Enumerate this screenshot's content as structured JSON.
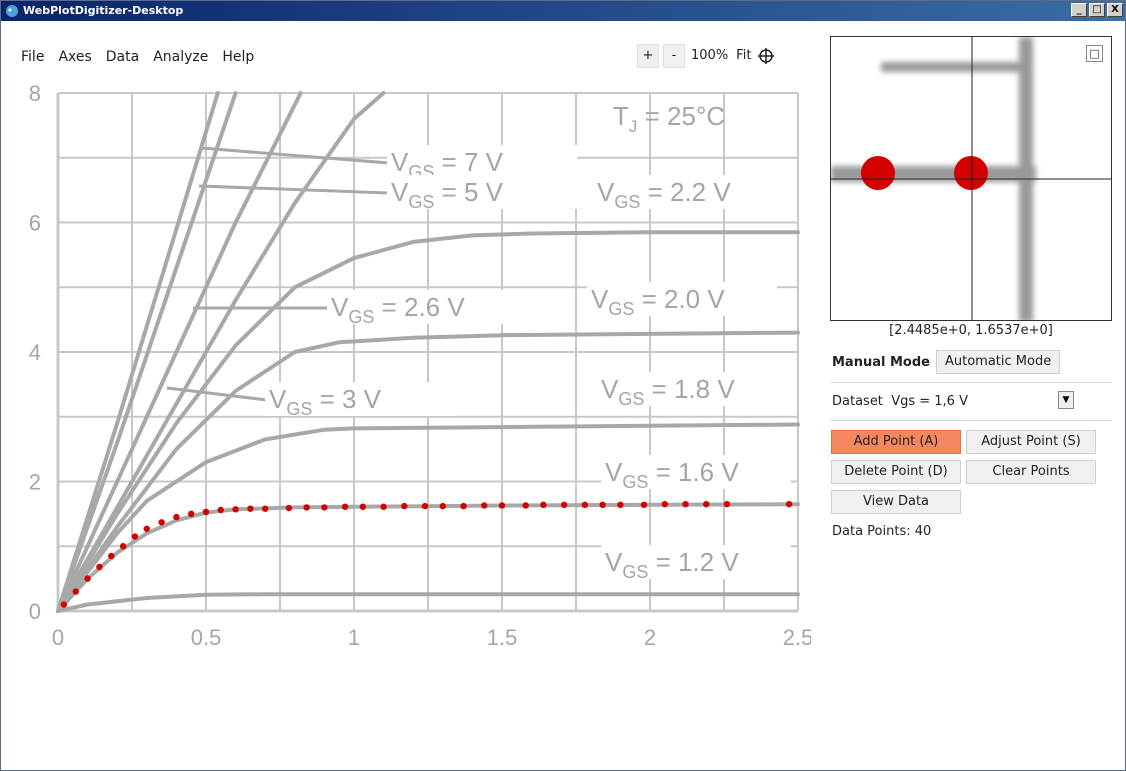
{
  "window": {
    "title": "WebPlotDigitizer-Desktop",
    "controls": [
      "_",
      "□",
      "X"
    ]
  },
  "menu": [
    "File",
    "Axes",
    "Data",
    "Analyze",
    "Help"
  ],
  "zoom_toolbar": {
    "zoom_in": "+",
    "zoom_out": "-",
    "zoom_level": "100%",
    "fit": "Fit",
    "crosshair_icon": "crosshair-icon"
  },
  "plot": {
    "junction_temp_label": "T",
    "junction_temp_sub": "J",
    "junction_temp_value": " = 25°C",
    "vgs_labels": [
      {
        "main": "V",
        "sub": "GS",
        "value": " = 7 V"
      },
      {
        "main": "V",
        "sub": "GS",
        "value": " = 5 V"
      },
      {
        "main": "V",
        "sub": "GS",
        "value": " = 2.2 V"
      },
      {
        "main": "V",
        "sub": "GS",
        "value": " = 2.6 V"
      },
      {
        "main": "V",
        "sub": "GS",
        "value": " = 2.0 V"
      },
      {
        "main": "V",
        "sub": "GS",
        "value": " = 3 V"
      },
      {
        "main": "V",
        "sub": "GS",
        "value": " = 1.8 V"
      },
      {
        "main": "V",
        "sub": "GS",
        "value": " = 1.6 V"
      },
      {
        "main": "V",
        "sub": "GS",
        "value": " = 1.2 V"
      }
    ],
    "x_ticks": [
      "0",
      "0.5",
      "1",
      "1.5",
      "2",
      "2.5"
    ],
    "y_ticks": [
      "0",
      "2",
      "4",
      "6",
      "8"
    ],
    "curve_color": "#a8a8a8",
    "point_color": "#d40000"
  },
  "chart_data": {
    "type": "line",
    "xlim": [
      0,
      2.5
    ],
    "ylim": [
      0,
      8
    ],
    "grid": true,
    "series": [
      {
        "name": "V_GS = 1.2 V",
        "x": [
          0,
          0.1,
          0.3,
          0.5,
          0.7,
          1.0,
          1.5,
          2.0,
          2.5
        ],
        "y": [
          0,
          0.1,
          0.2,
          0.25,
          0.26,
          0.26,
          0.26,
          0.26,
          0.26
        ]
      },
      {
        "name": "V_GS = 1.6 V",
        "x": [
          0,
          0.1,
          0.2,
          0.3,
          0.4,
          0.5,
          0.6,
          0.8,
          1.0,
          1.5,
          2.0,
          2.5
        ],
        "y": [
          0,
          0.5,
          0.9,
          1.2,
          1.4,
          1.52,
          1.57,
          1.6,
          1.61,
          1.63,
          1.64,
          1.65
        ]
      },
      {
        "name": "V_GS = 1.8 V",
        "x": [
          0,
          0.1,
          0.2,
          0.3,
          0.5,
          0.7,
          0.9,
          1.0,
          1.5,
          2.0,
          2.5
        ],
        "y": [
          0,
          0.6,
          1.2,
          1.7,
          2.3,
          2.65,
          2.8,
          2.82,
          2.84,
          2.86,
          2.88
        ]
      },
      {
        "name": "V_GS = 2.0 V",
        "x": [
          0,
          0.2,
          0.4,
          0.6,
          0.8,
          0.95,
          1.2,
          1.5,
          2.0,
          2.5
        ],
        "y": [
          0,
          1.3,
          2.5,
          3.4,
          4.0,
          4.15,
          4.22,
          4.26,
          4.28,
          4.3
        ]
      },
      {
        "name": "V_GS = 2.2 V",
        "x": [
          0,
          0.2,
          0.4,
          0.6,
          0.8,
          1.0,
          1.2,
          1.4,
          1.6,
          2.0,
          2.5
        ],
        "y": [
          0,
          1.5,
          2.9,
          4.1,
          5.0,
          5.45,
          5.7,
          5.8,
          5.83,
          5.85,
          5.85
        ]
      },
      {
        "name": "V_GS = 2.6 V",
        "x": [
          0,
          0.2,
          0.4,
          0.6,
          0.8,
          1.0,
          1.1
        ],
        "y": [
          0,
          1.6,
          3.2,
          4.8,
          6.3,
          7.6,
          8.0
        ]
      },
      {
        "name": "V_GS = 3 V",
        "x": [
          0,
          0.2,
          0.4,
          0.6,
          0.82
        ],
        "y": [
          0,
          2.0,
          4.0,
          6.0,
          8.0
        ]
      },
      {
        "name": "V_GS = 5 V",
        "x": [
          0,
          0.2,
          0.4,
          0.6
        ],
        "y": [
          0,
          2.6,
          5.3,
          8.0
        ]
      },
      {
        "name": "V_GS = 7 V",
        "x": [
          0,
          0.2,
          0.4,
          0.54
        ],
        "y": [
          0,
          2.9,
          5.9,
          8.0
        ]
      }
    ],
    "digitized_points": {
      "x": [
        0.02,
        0.06,
        0.1,
        0.14,
        0.18,
        0.22,
        0.26,
        0.3,
        0.35,
        0.4,
        0.45,
        0.5,
        0.55,
        0.6,
        0.65,
        0.7,
        0.78,
        0.84,
        0.9,
        0.97,
        1.03,
        1.1,
        1.17,
        1.24,
        1.3,
        1.37,
        1.44,
        1.5,
        1.58,
        1.64,
        1.71,
        1.78,
        1.84,
        1.9,
        1.98,
        2.05,
        2.12,
        2.19,
        2.26,
        2.47
      ],
      "y": [
        0.1,
        0.3,
        0.5,
        0.68,
        0.85,
        1.0,
        1.15,
        1.27,
        1.37,
        1.45,
        1.5,
        1.53,
        1.56,
        1.57,
        1.58,
        1.58,
        1.59,
        1.6,
        1.6,
        1.61,
        1.61,
        1.61,
        1.62,
        1.62,
        1.62,
        1.62,
        1.63,
        1.63,
        1.63,
        1.64,
        1.64,
        1.64,
        1.64,
        1.64,
        1.64,
        1.65,
        1.65,
        1.65,
        1.65,
        1.65
      ]
    }
  },
  "zoom_view": {
    "coords": "[2.4485e+0, 1.6537e+0]",
    "expand_icon": "expand-icon"
  },
  "controls": {
    "manual_mode": "Manual Mode",
    "automatic_mode": "Automatic Mode",
    "dataset_label": "Dataset",
    "dataset_value": "Vgs = 1,6 V",
    "add_point": "Add Point (A)",
    "adjust_point": "Adjust Point (S)",
    "delete_point": "Delete Point (D)",
    "clear_points": "Clear Points",
    "view_data": "View Data",
    "data_points_label": "Data Points: 40"
  }
}
